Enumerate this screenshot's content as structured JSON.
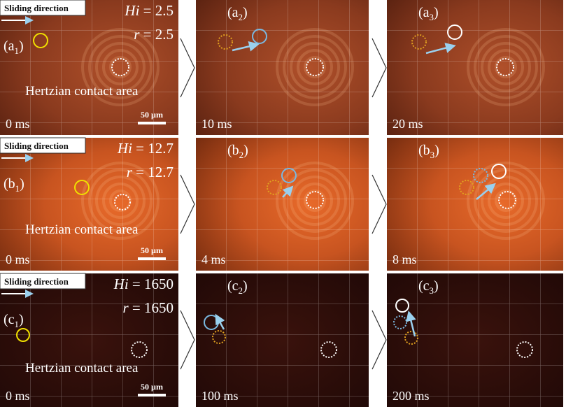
{
  "rows": [
    {
      "panels": [
        {
          "label": [
            "(a",
            "1",
            ")"
          ],
          "time": "0 ms",
          "sliding_direction": "Sliding direction",
          "hi": [
            "Hi",
            " = 2.5"
          ],
          "r": [
            "r",
            " = 2.5"
          ],
          "contact_area": "Hertzian contact area",
          "scale_bar": "50 µm"
        },
        {
          "label": [
            "(a",
            "2",
            ")"
          ],
          "time": "10 ms"
        },
        {
          "label": [
            "(a",
            "3",
            ")"
          ],
          "time": "20 ms"
        }
      ]
    },
    {
      "panels": [
        {
          "label": [
            "(b",
            "1",
            ")"
          ],
          "time": "0 ms",
          "sliding_direction": "Sliding direction",
          "hi": [
            "Hi",
            " = 12.7"
          ],
          "r": [
            "r",
            " = 12.7"
          ],
          "contact_area": "Hertzian contact area",
          "scale_bar": "50 µm"
        },
        {
          "label": [
            "(b",
            "2",
            ")"
          ],
          "time": "4 ms"
        },
        {
          "label": [
            "(b",
            "3",
            ")"
          ],
          "time": "8 ms"
        }
      ]
    },
    {
      "panels": [
        {
          "label": [
            "(c",
            "1",
            ")"
          ],
          "time": "0 ms",
          "sliding_direction": "Sliding direction",
          "hi": [
            "Hi",
            " = 1650"
          ],
          "r": [
            "r",
            " = 1650"
          ],
          "contact_area": "Hertzian contact area",
          "scale_bar": "50 µm"
        },
        {
          "label": [
            "(c",
            "2",
            ")"
          ],
          "time": "100 ms"
        },
        {
          "label": [
            "(c",
            "3",
            ")"
          ],
          "time": "200 ms"
        }
      ]
    }
  ]
}
